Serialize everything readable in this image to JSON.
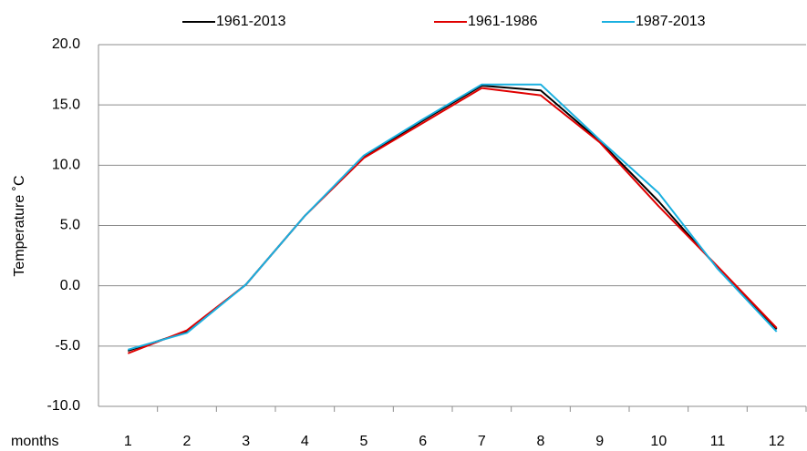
{
  "chart_data": {
    "type": "line",
    "y_label": "Temperature ˚C",
    "x_label": "months",
    "categories": [
      "1",
      "2",
      "3",
      "4",
      "5",
      "6",
      "7",
      "8",
      "9",
      "10",
      "11",
      "12"
    ],
    "series": [
      {
        "name": "1961-2013",
        "color": "#000000",
        "values": [
          -5.4,
          -3.8,
          0.1,
          5.8,
          10.7,
          13.7,
          16.6,
          16.2,
          12.0,
          7.0,
          1.5,
          -3.6
        ]
      },
      {
        "name": "1961-1986",
        "color": "#e00000",
        "values": [
          -5.6,
          -3.7,
          0.1,
          5.8,
          10.6,
          13.5,
          16.4,
          15.8,
          11.9,
          6.6,
          1.6,
          -3.5
        ]
      },
      {
        "name": "1987-2013",
        "color": "#1ab0e0",
        "values": [
          -5.3,
          -3.9,
          0.1,
          5.8,
          10.8,
          13.8,
          16.7,
          16.7,
          12.1,
          7.7,
          1.4,
          -3.8
        ]
      }
    ],
    "ylim": [
      -10,
      20
    ],
    "yticks": [
      {
        "value": -10,
        "label": "-10.0"
      },
      {
        "value": -5,
        "label": "-5.0"
      },
      {
        "value": 0,
        "label": "0.0"
      },
      {
        "value": 5,
        "label": "5.0"
      },
      {
        "value": 10,
        "label": "10.0"
      },
      {
        "value": 15,
        "label": "15.0"
      },
      {
        "value": 20,
        "label": "20.0"
      }
    ],
    "grid": true,
    "legend": "top"
  }
}
